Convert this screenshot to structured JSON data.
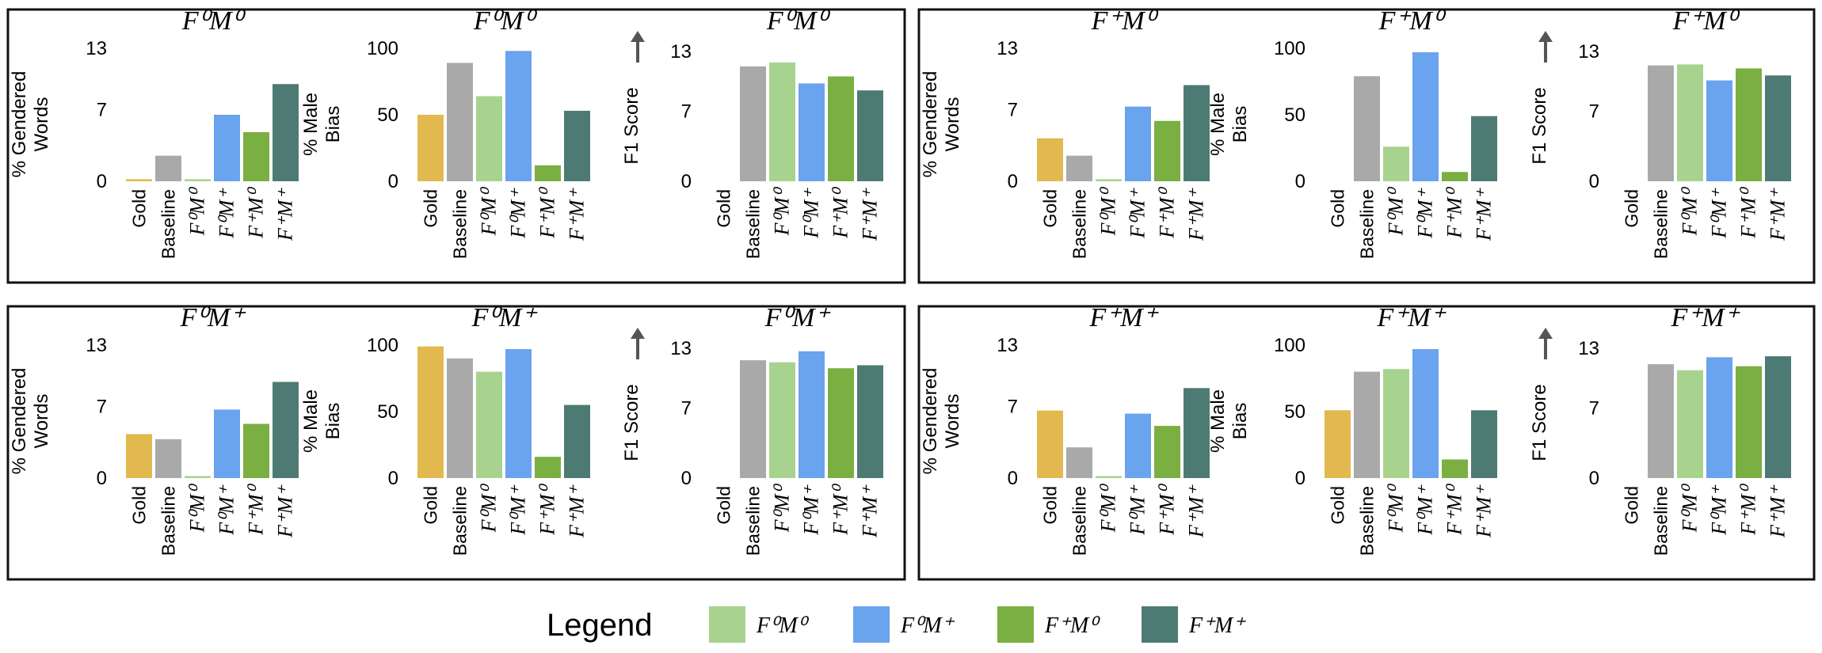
{
  "legend": {
    "title": "Legend",
    "items": [
      {
        "key": "F0M0",
        "label": "F⁰M⁰",
        "color": "#a8d38f"
      },
      {
        "key": "F0M+",
        "label": "F⁰M⁺",
        "color": "#6aa3ee"
      },
      {
        "key": "F+M0",
        "label": "F⁺M⁰",
        "color": "#7aaf42"
      },
      {
        "key": "F+M+",
        "label": "F⁺M⁺",
        "color": "#4d7b74"
      }
    ]
  },
  "colors": {
    "Gold": "#e2b94f",
    "Baseline": "#a9a9a9",
    "F0M0": "#a8d38f",
    "F0M+": "#6aa3ee",
    "F+M0": "#7aaf42",
    "F+M+": "#4d7b74"
  },
  "category_keys": [
    "Gold",
    "Baseline",
    "F0M0",
    "F0M+",
    "F+M0",
    "F+M+"
  ],
  "category_labels": [
    "Gold",
    "Baseline",
    "F⁰M⁰",
    "F⁰M⁺",
    "F⁺M⁰",
    "F⁺M⁺"
  ],
  "arrow_icon": "up-arrow-icon",
  "chart_data": [
    {
      "type": "bar",
      "group": "F⁰M⁰",
      "title": "F⁰M⁰",
      "ylabel": "% Gendered Words",
      "ylim": [
        0,
        13
      ],
      "yticks": [
        "0",
        "7",
        "13"
      ],
      "categories": [
        "Gold",
        "Baseline",
        "F⁰M⁰",
        "F⁰M⁺",
        "F⁺M⁰",
        "F⁺M⁺"
      ],
      "values": [
        0.2,
        2.5,
        0.2,
        6.5,
        4.8,
        9.5
      ]
    },
    {
      "type": "bar",
      "group": "F⁰M⁰",
      "title": "F⁰M⁰",
      "ylabel": "% Male Bias",
      "ylim": [
        0,
        100
      ],
      "yticks": [
        "0",
        "50",
        "100"
      ],
      "categories": [
        "Gold",
        "Baseline",
        "F⁰M⁰",
        "F⁰M⁺",
        "F⁺M⁰",
        "F⁺M⁺"
      ],
      "values": [
        50,
        89,
        64,
        98,
        12,
        53
      ]
    },
    {
      "type": "bar",
      "group": "F⁰M⁰",
      "title": "F⁰M⁰",
      "ylabel": "F1 Score",
      "ylim": [
        0,
        13
      ],
      "yticks": [
        "0",
        "7",
        "13"
      ],
      "categories": [
        "Gold",
        "Baseline",
        "F⁰M⁰",
        "F⁰M⁺",
        "F⁺M⁰",
        "F⁺M⁺"
      ],
      "values": [
        0,
        11.5,
        11.9,
        9.8,
        10.5,
        9.1
      ]
    },
    {
      "type": "bar",
      "group": "F⁺M⁰",
      "title": "F⁺M⁰",
      "ylabel": "% Gendered Words",
      "ylim": [
        0,
        13
      ],
      "yticks": [
        "0",
        "7",
        "13"
      ],
      "categories": [
        "Gold",
        "Baseline",
        "F⁰M⁰",
        "F⁰M⁺",
        "F⁺M⁰",
        "F⁺M⁺"
      ],
      "values": [
        4.2,
        2.5,
        0.2,
        7.3,
        5.9,
        9.4
      ]
    },
    {
      "type": "bar",
      "group": "F⁺M⁰",
      "title": "F⁺M⁰",
      "ylabel": "% Male Bias",
      "ylim": [
        0,
        100
      ],
      "yticks": [
        "0",
        "50",
        "100"
      ],
      "categories": [
        "Gold",
        "Baseline",
        "F⁰M⁰",
        "F⁰M⁺",
        "F⁺M⁰",
        "F⁺M⁺"
      ],
      "values": [
        0,
        79,
        26,
        97,
        7,
        49
      ]
    },
    {
      "type": "bar",
      "group": "F⁺M⁰",
      "title": "F⁺M⁰",
      "ylabel": "F1 Score",
      "ylim": [
        0,
        13
      ],
      "yticks": [
        "0",
        "7",
        "13"
      ],
      "categories": [
        "Gold",
        "Baseline",
        "F⁰M⁰",
        "F⁰M⁺",
        "F⁺M⁰",
        "F⁺M⁺"
      ],
      "values": [
        0,
        11.6,
        11.7,
        10.1,
        11.3,
        10.6
      ]
    },
    {
      "type": "bar",
      "group": "F⁰M⁺",
      "title": "F⁰M⁺",
      "ylabel": "% Gendered Words",
      "ylim": [
        0,
        13
      ],
      "yticks": [
        "0",
        "7",
        "13"
      ],
      "categories": [
        "Gold",
        "Baseline",
        "F⁰M⁰",
        "F⁰M⁺",
        "F⁺M⁰",
        "F⁺M⁺"
      ],
      "values": [
        4.3,
        3.8,
        0.2,
        6.7,
        5.3,
        9.4
      ]
    },
    {
      "type": "bar",
      "group": "F⁰M⁺",
      "title": "F⁰M⁺",
      "ylabel": "% Male Bias",
      "ylim": [
        0,
        100
      ],
      "yticks": [
        "0",
        "50",
        "100"
      ],
      "categories": [
        "Gold",
        "Baseline",
        "F⁰M⁰",
        "F⁰M⁺",
        "F⁺M⁰",
        "F⁺M⁺"
      ],
      "values": [
        99,
        90,
        80,
        97,
        16,
        55
      ]
    },
    {
      "type": "bar",
      "group": "F⁰M⁺",
      "title": "F⁰M⁺",
      "ylabel": "F1 Score",
      "ylim": [
        0,
        13
      ],
      "yticks": [
        "0",
        "7",
        "13"
      ],
      "categories": [
        "Gold",
        "Baseline",
        "F⁰M⁰",
        "F⁰M⁺",
        "F⁺M⁰",
        "F⁺M⁺"
      ],
      "values": [
        0,
        11.8,
        11.6,
        12.7,
        11.0,
        11.3
      ]
    },
    {
      "type": "bar",
      "group": "F⁺M⁺",
      "title": "F⁺M⁺",
      "ylabel": "% Gendered Words",
      "ylim": [
        0,
        13
      ],
      "yticks": [
        "0",
        "7",
        "13"
      ],
      "categories": [
        "Gold",
        "Baseline",
        "F⁰M⁰",
        "F⁰M⁺",
        "F⁺M⁰",
        "F⁺M⁺"
      ],
      "values": [
        6.6,
        3.0,
        0.2,
        6.3,
        5.1,
        8.8
      ]
    },
    {
      "type": "bar",
      "group": "F⁺M⁺",
      "title": "F⁺M⁺",
      "ylabel": "% Male Bias",
      "ylim": [
        0,
        100
      ],
      "yticks": [
        "0",
        "50",
        "100"
      ],
      "categories": [
        "Gold",
        "Baseline",
        "F⁰M⁰",
        "F⁰M⁺",
        "F⁺M⁰",
        "F⁺M⁺"
      ],
      "values": [
        51,
        80,
        82,
        97,
        14,
        51
      ]
    },
    {
      "type": "bar",
      "group": "F⁺M⁺",
      "title": "F⁺M⁺",
      "ylabel": "F1 Score",
      "ylim": [
        0,
        13
      ],
      "yticks": [
        "0",
        "7",
        "13"
      ],
      "categories": [
        "Gold",
        "Baseline",
        "F⁰M⁰",
        "F⁰M⁺",
        "F⁺M⁰",
        "F⁺M⁺"
      ],
      "values": [
        0,
        11.4,
        10.8,
        12.1,
        11.2,
        12.2
      ]
    }
  ]
}
